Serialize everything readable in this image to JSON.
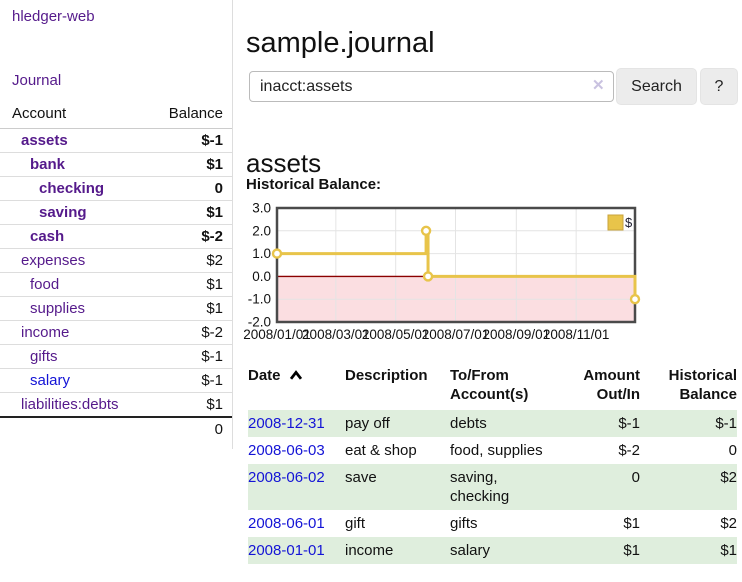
{
  "brand": "hledger-web",
  "nav": {
    "journal": "Journal"
  },
  "sidebar": {
    "header": {
      "account": "Account",
      "balance": "Balance"
    },
    "rows": [
      {
        "name": "assets",
        "indent": 1,
        "balance": "$-1",
        "bold": true,
        "balance_class": "neg"
      },
      {
        "name": "bank",
        "indent": 2,
        "balance": "$1",
        "bold": true,
        "balance_class": ""
      },
      {
        "name": "checking",
        "indent": 3,
        "balance": "0",
        "bold": true,
        "balance_class": ""
      },
      {
        "name": "saving",
        "indent": 3,
        "balance": "$1",
        "bold": true,
        "balance_class": ""
      },
      {
        "name": "cash",
        "indent": 2,
        "balance": "$-2",
        "bold": true,
        "balance_class": "neg"
      },
      {
        "name": "expenses",
        "indent": 1,
        "balance": "$2",
        "bold": false,
        "balance_class": ""
      },
      {
        "name": "food",
        "indent": 2,
        "balance": "$1",
        "bold": false,
        "balance_class": ""
      },
      {
        "name": "supplies",
        "indent": 2,
        "balance": "$1",
        "bold": false,
        "balance_class": ""
      },
      {
        "name": "income",
        "indent": 1,
        "balance": "$-2",
        "bold": false,
        "balance_class": "dim"
      },
      {
        "name": "gifts",
        "indent": 2,
        "balance": "$-1",
        "bold": false,
        "balance_class": "dim"
      },
      {
        "name": "salary",
        "indent": 2,
        "balance": "$-1",
        "bold": false,
        "balance_class": "dim",
        "link_color": "blue"
      },
      {
        "name": "liabilities:debts",
        "indent": 1,
        "balance": "$1",
        "bold": false,
        "balance_class": ""
      }
    ],
    "total": "0"
  },
  "main": {
    "title": "sample.journal",
    "search": {
      "value": "inacct:assets",
      "clear_icon": "✕",
      "search_button": "Search",
      "help_button": "?"
    },
    "account_heading": "assets",
    "chart_title": "Historical Balance:"
  },
  "chart_data": {
    "type": "line",
    "step": true,
    "title": "Historical Balance",
    "series": [
      {
        "name": "$",
        "color": "#e8c44a",
        "points": [
          {
            "date": "2008/01/01",
            "day": 0,
            "value": 1.0
          },
          {
            "date": "2008/06/01",
            "day": 152,
            "value": 2.0
          },
          {
            "date": "2008/06/03",
            "day": 154,
            "value": 0.0
          },
          {
            "date": "2008/12/31",
            "day": 365,
            "value": -1.0
          }
        ]
      }
    ],
    "x_ticks": [
      {
        "day": 0,
        "label": "2008/01/01"
      },
      {
        "day": 60,
        "label": "2008/03/01"
      },
      {
        "day": 121,
        "label": "2008/05/01"
      },
      {
        "day": 182,
        "label": "2008/07/01"
      },
      {
        "day": 244,
        "label": "2008/09/01"
      },
      {
        "day": 305,
        "label": "2008/11/01"
      }
    ],
    "y_ticks": [
      {
        "value": 3,
        "label": "3.0"
      },
      {
        "value": 2,
        "label": "2.0"
      },
      {
        "value": 1,
        "label": "1.0"
      },
      {
        "value": 0,
        "label": "0.0"
      },
      {
        "value": -1,
        "label": "-1.0"
      },
      {
        "value": -2,
        "label": "-2.0"
      }
    ],
    "xlim_days": [
      0,
      365
    ],
    "ylim": [
      -2,
      3
    ],
    "grid": true,
    "legend": {
      "label": "$",
      "position": "top-right"
    },
    "negative_region_fill": "#fbdee1",
    "zero_line_color": "#8b0000"
  },
  "register": {
    "headers": {
      "date": "Date",
      "description": "Description",
      "accounts": "To/From Account(s)",
      "amount": "Amount Out/In",
      "balance": "Historical Balance"
    },
    "rows": [
      {
        "date": "2008-12-31",
        "description": "pay off",
        "accounts": "debts",
        "amount": "$-1",
        "amount_class": "neg",
        "balance": "$-1",
        "balance_class": "neg",
        "shaded": true
      },
      {
        "date": "2008-06-03",
        "description": "eat & shop",
        "accounts": "food, supplies",
        "amount": "$-2",
        "amount_class": "neg",
        "balance": "0",
        "balance_class": "",
        "shaded": false
      },
      {
        "date": "2008-06-02",
        "description": "save",
        "accounts": "saving, checking",
        "amount": "0",
        "amount_class": "",
        "balance": "$2",
        "balance_class": "",
        "shaded": true
      },
      {
        "date": "2008-06-01",
        "description": "gift",
        "accounts": "gifts",
        "amount": "$1",
        "amount_class": "",
        "balance": "$2",
        "balance_class": "",
        "shaded": false
      },
      {
        "date": "2008-01-01",
        "description": "income",
        "accounts": "salary",
        "amount": "$1",
        "amount_class": "",
        "balance": "$1",
        "balance_class": "",
        "shaded": true
      }
    ]
  },
  "colors": {
    "link_visited": "#551a8b",
    "link_unvisited": "#1414d6",
    "negative": "#8f1d1d",
    "negative_dim": "#c38b8b",
    "row_shaded": "#dfeedd",
    "series_yellow": "#e8c44a",
    "chart_negative_fill": "#fbdee1",
    "chart_zero_line": "#8b0000",
    "button_bg": "#ececec"
  }
}
